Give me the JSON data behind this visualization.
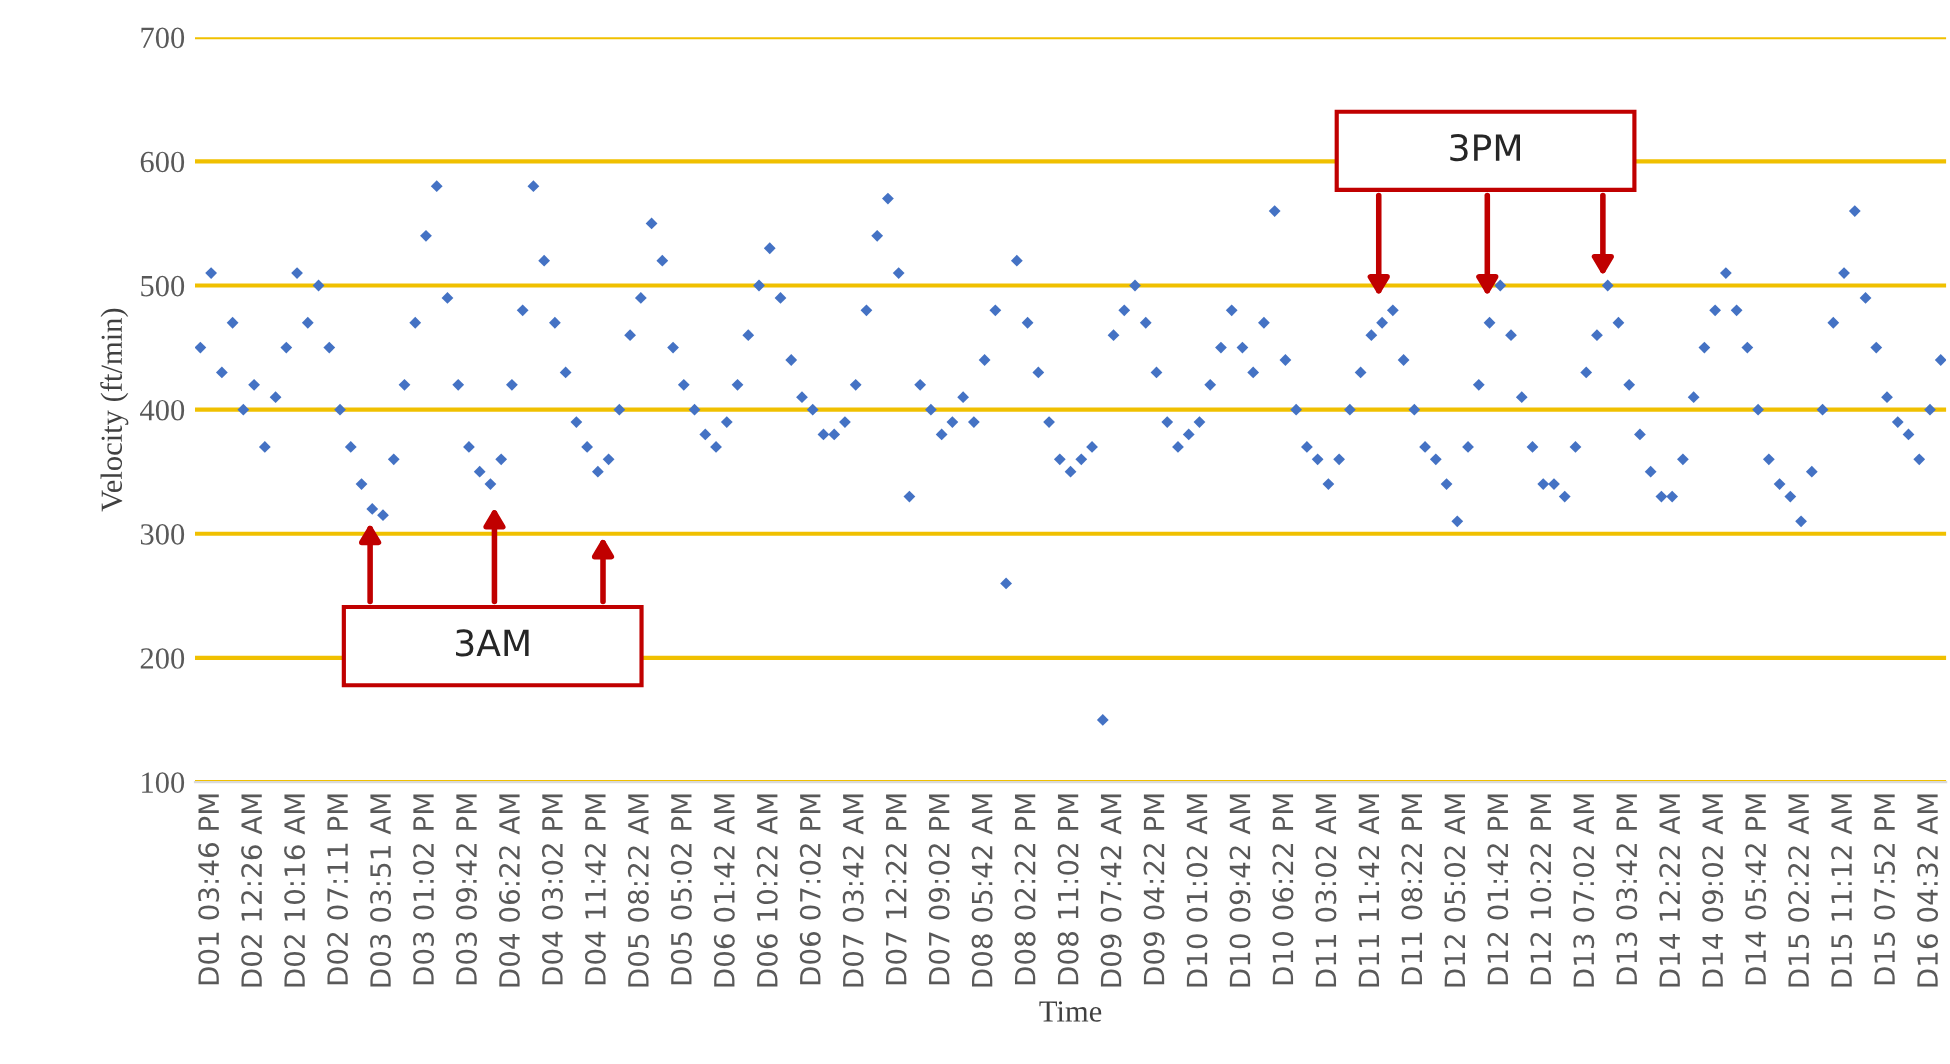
{
  "chart_data": {
    "type": "scatter",
    "xlabel": "Time",
    "ylabel": "Velocity (ft/min)",
    "annotations": [
      "3AM",
      "3PM"
    ],
    "categories": [
      null,
      "D01 03:46 PM",
      null,
      null,
      null,
      "D02 12:26 AM",
      null,
      null,
      null,
      "D02 10:16 AM",
      null,
      null,
      null,
      "D02 07:11 PM",
      null,
      null,
      null,
      "D03 03:51 AM",
      null,
      null,
      null,
      "D03 01:02 PM",
      null,
      null,
      null,
      "D03 09:42 PM",
      null,
      null,
      null,
      "D04 06:22 AM",
      null,
      null,
      null,
      "D04 03:02 PM",
      null,
      null,
      null,
      "D04 11:42 PM",
      null,
      null,
      null,
      "D05 08:22 AM",
      null,
      null,
      null,
      "D05 05:02 PM",
      null,
      null,
      null,
      "D06 01:42 AM",
      null,
      null,
      null,
      "D06 10:22 AM",
      null,
      null,
      null,
      "D06 07:02 PM",
      null,
      null,
      null,
      "D07 03:42 AM",
      null,
      null,
      null,
      "D07 12:22 PM",
      null,
      null,
      null,
      "D07 09:02 PM",
      null,
      null,
      null,
      "D08 05:42 AM",
      null,
      null,
      null,
      "D08 02:22 PM",
      null,
      null,
      null,
      "D08 11:02 PM",
      null,
      null,
      null,
      "D09 07:42 AM",
      null,
      null,
      null,
      "D09 04:22 PM",
      null,
      null,
      null,
      "D10 01:02 AM",
      null,
      null,
      null,
      "D10 09:42 AM",
      null,
      null,
      null,
      "D10 06:22 PM",
      null,
      null,
      null,
      "D11 03:02 AM",
      null,
      null,
      null,
      "D11 11:42 AM",
      null,
      null,
      null,
      "D11 08:22 PM",
      null,
      null,
      null,
      "D12 05:02 AM",
      null,
      null,
      null,
      "D12 01:42 PM",
      null,
      null,
      null,
      "D12 10:22 PM",
      null,
      null,
      null,
      "D13 07:02 AM",
      null,
      null,
      null,
      "D13 03:42 PM",
      null,
      null,
      null,
      "D14 12:22 AM",
      null,
      null,
      null,
      "D14 09:02 AM",
      null,
      null,
      null,
      "D14 05:42 PM",
      null,
      null,
      null,
      "D15 02:22 AM",
      null,
      null,
      null,
      "D15 11:12 AM",
      null,
      null,
      null,
      "D15 07:52 PM",
      null,
      null,
      null,
      "D16 04:32 AM",
      null
    ],
    "ylim": [
      100,
      700
    ],
    "yticks": [
      100,
      200,
      300,
      400,
      500,
      600,
      700
    ],
    "grid": "y",
    "marker": "diamond",
    "series": [
      {
        "color": "#4472c4",
        "values": [
          450,
          510,
          430,
          470,
          400,
          420,
          370,
          410,
          450,
          510,
          470,
          500,
          450,
          400,
          370,
          340,
          320,
          315,
          360,
          420,
          470,
          540,
          580,
          490,
          420,
          370,
          350,
          340,
          360,
          420,
          480,
          580,
          520,
          470,
          430,
          390,
          370,
          350,
          360,
          400,
          460,
          490,
          550,
          520,
          450,
          420,
          400,
          380,
          370,
          390,
          420,
          460,
          500,
          530,
          490,
          440,
          410,
          400,
          380,
          380,
          390,
          420,
          480,
          540,
          570,
          510,
          330,
          420,
          400,
          380,
          390,
          410,
          390,
          440,
          480,
          260,
          520,
          470,
          430,
          390,
          360,
          350,
          360,
          370,
          150,
          460,
          480,
          500,
          470,
          430,
          390,
          370,
          380,
          390,
          420,
          450,
          480,
          450,
          430,
          470,
          560,
          440,
          400,
          370,
          360,
          340,
          360,
          400,
          430,
          460,
          470,
          480,
          440,
          400,
          370,
          360,
          340,
          310,
          370,
          420,
          470,
          500,
          460,
          410,
          370,
          340,
          340,
          330,
          370,
          430,
          460,
          500,
          470,
          420,
          380,
          350,
          330,
          330,
          360,
          410,
          450,
          480,
          510,
          480,
          450,
          400,
          360,
          340,
          330,
          310,
          350,
          400,
          470,
          510,
          560,
          490,
          450,
          410,
          390,
          380,
          360,
          400,
          440
        ]
      }
    ]
  }
}
